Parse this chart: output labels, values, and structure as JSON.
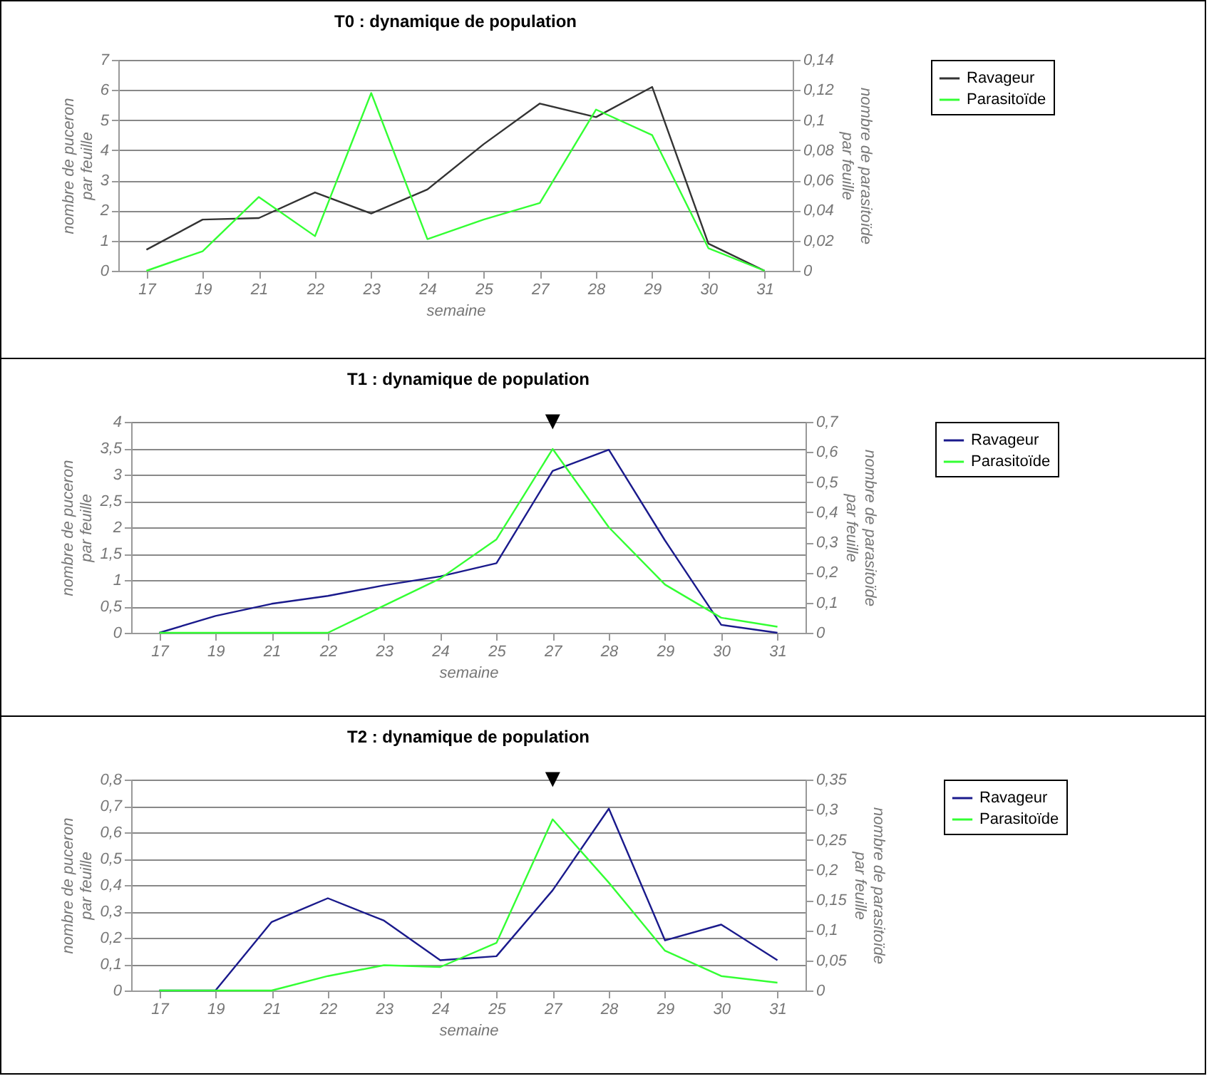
{
  "chart_data": [
    {
      "type": "line",
      "title": "T0 : dynamique de population",
      "xlabel": "semaine",
      "ylabel": "nombre de puceron par feuille",
      "y2label": "nombre de parasitoïde par feuille",
      "categories": [
        "17",
        "19",
        "21",
        "22",
        "23",
        "24",
        "25",
        "27",
        "28",
        "29",
        "30",
        "31"
      ],
      "series": [
        {
          "name": "Ravageur",
          "color": "#333333",
          "values": [
            0.7,
            1.7,
            1.75,
            2.6,
            1.9,
            2.7,
            4.2,
            5.55,
            5.1,
            6.1,
            0.9,
            0
          ]
        },
        {
          "name": "Parasitoïde",
          "color": "#33ff33",
          "axis": "y2",
          "values": [
            0,
            0.013,
            0.049,
            0.023,
            0.118,
            0.021,
            0.034,
            0.045,
            0.107,
            0.09,
            0.015,
            0
          ]
        }
      ],
      "ylim": [
        0,
        7
      ],
      "yticks": [
        0,
        1,
        2,
        3,
        4,
        5,
        6,
        7
      ],
      "y2lim": [
        0,
        0.14
      ],
      "y2ticks": [
        {
          "value": 0,
          "label": "0"
        },
        {
          "value": 0.02,
          "label": "0,02"
        },
        {
          "value": 0.04,
          "label": "0,04"
        },
        {
          "value": 0.06,
          "label": "0,06"
        },
        {
          "value": 0.08,
          "label": "0,08"
        },
        {
          "value": 0.1,
          "label": "0,1"
        },
        {
          "value": 0.12,
          "label": "0,12"
        },
        {
          "value": 0.14,
          "label": "0,14"
        }
      ],
      "grid": "y",
      "legend": "right",
      "line_style": "solid"
    },
    {
      "type": "line",
      "title": "T1 : dynamique de population",
      "xlabel": "semaine",
      "ylabel": "nombre de puceron par feuille",
      "y2label": "nombre de parasitoïde par feuille",
      "categories": [
        "17",
        "19",
        "21",
        "22",
        "23",
        "24",
        "25",
        "27",
        "28",
        "29",
        "30",
        "31"
      ],
      "series": [
        {
          "name": "Ravageur",
          "color": "#1a1a8c",
          "values": [
            0,
            0.32,
            0.55,
            0.7,
            0.9,
            1.07,
            1.32,
            3.07,
            3.47,
            1.75,
            0.15,
            0
          ]
        },
        {
          "name": "Parasitoïde",
          "color": "#33ff33",
          "axis": "y2",
          "values": [
            0,
            0,
            0,
            0,
            0.09,
            0.18,
            0.31,
            0.61,
            0.35,
            0.16,
            0.05,
            0.02
          ]
        }
      ],
      "ylim": [
        0,
        4
      ],
      "yticks": [
        0,
        {
          "value": 0.5,
          "label": "0,5"
        },
        1,
        {
          "value": 1.5,
          "label": "1,5"
        },
        2,
        {
          "value": 2.5,
          "label": "2,5"
        },
        3,
        {
          "value": 3.5,
          "label": "3,5"
        },
        4
      ],
      "y2lim": [
        0,
        0.7
      ],
      "y2ticks": [
        {
          "value": 0,
          "label": "0"
        },
        {
          "value": 0.1,
          "label": "0,1"
        },
        {
          "value": 0.2,
          "label": "0,2"
        },
        {
          "value": 0.3,
          "label": "0,3"
        },
        {
          "value": 0.4,
          "label": "0,4"
        },
        {
          "value": 0.5,
          "label": "0,5"
        },
        {
          "value": 0.6,
          "label": "0,6"
        },
        {
          "value": 0.7,
          "label": "0,7"
        }
      ],
      "annotations": [
        "▼"
      ],
      "grid": "y",
      "legend": "right",
      "line_style": "solid"
    },
    {
      "type": "line",
      "title": "T2 : dynamique de population",
      "xlabel": "semaine",
      "ylabel": "nombre de puceron par feuille",
      "y2label": "nombre de parasitoïde par feuille",
      "categories": [
        "17",
        "19",
        "21",
        "22",
        "23",
        "24",
        "25",
        "27",
        "28",
        "29",
        "30",
        "31"
      ],
      "series": [
        {
          "name": "Ravageur",
          "color": "#1a1a8c",
          "values": [
            0,
            0,
            0.26,
            0.35,
            0.265,
            0.115,
            0.13,
            0.38,
            0.69,
            0.19,
            0.25,
            0.115
          ]
        },
        {
          "name": "Parasitoïde",
          "color": "#33ff33",
          "axis": "y2",
          "values": [
            0,
            0,
            0,
            0.024,
            0.042,
            0.039,
            0.079,
            0.284,
            0.179,
            0.066,
            0.024,
            0.013
          ]
        }
      ],
      "ylim": [
        0,
        0.8
      ],
      "yticks": [
        0,
        {
          "value": 0.1,
          "label": "0,1"
        },
        {
          "value": 0.2,
          "label": "0,2"
        },
        {
          "value": 0.3,
          "label": "0,3"
        },
        {
          "value": 0.4,
          "label": "0,4"
        },
        {
          "value": 0.5,
          "label": "0,5"
        },
        {
          "value": 0.6,
          "label": "0,6"
        },
        {
          "value": 0.7,
          "label": "0,7"
        },
        {
          "value": 0.8,
          "label": "0,8"
        }
      ],
      "y2lim": [
        0,
        0.35
      ],
      "y2ticks": [
        {
          "value": 0,
          "label": "0"
        },
        {
          "value": 0.05,
          "label": "0,05"
        },
        {
          "value": 0.1,
          "label": "0,1"
        },
        {
          "value": 0.15,
          "label": "0,15"
        },
        {
          "value": 0.2,
          "label": "0,2"
        },
        {
          "value": 0.25,
          "label": "0,25"
        },
        {
          "value": 0.3,
          "label": "0,3"
        },
        {
          "value": 0.35,
          "label": "0,35"
        }
      ],
      "annotations": [
        "▼"
      ],
      "grid": "y",
      "legend": "right",
      "line_style": "solid"
    }
  ]
}
